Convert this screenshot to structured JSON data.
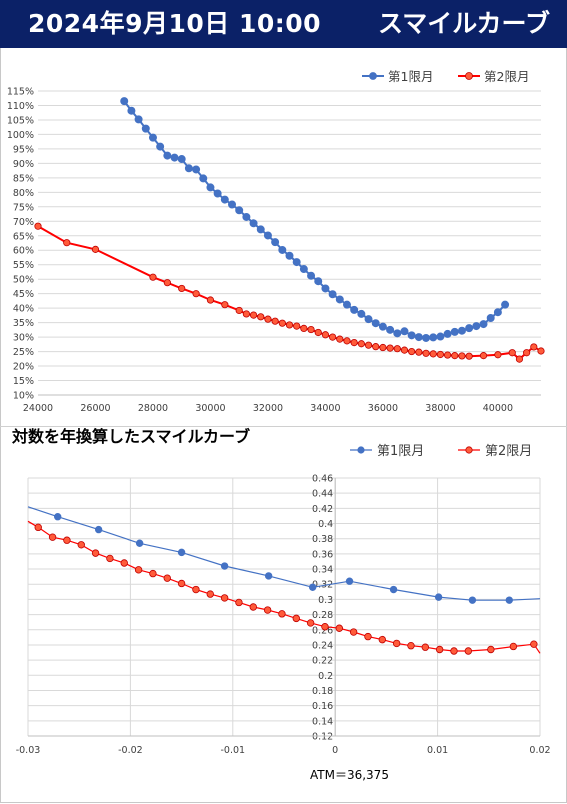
{
  "header": {
    "date": "2024年9月10日 10:00",
    "title": "スマイルカーブ"
  },
  "colors": {
    "header_bg": "#0b2167",
    "series1": "#4472c4",
    "series2": "#ff0000",
    "series2_fill": "#ff5b3a",
    "grid": "#d9d9d9"
  },
  "chart_data": [
    {
      "type": "line",
      "title": "",
      "legend_position": "top-right",
      "grid": true,
      "xlim": [
        24000,
        41500
      ],
      "ylim": [
        10,
        115
      ],
      "x_ticks": [
        "24000",
        "26000",
        "28000",
        "30000",
        "32000",
        "34000",
        "36000",
        "38000",
        "40000"
      ],
      "y_ticks": [
        "10%",
        "15%",
        "20%",
        "25%",
        "30%",
        "35%",
        "40%",
        "45%",
        "50%",
        "55%",
        "60%",
        "65%",
        "70%",
        "75%",
        "80%",
        "85%",
        "90%",
        "95%",
        "100%",
        "105%",
        "110%",
        "115%"
      ],
      "series": [
        {
          "name": "第1限月",
          "x": [
            27000,
            27250,
            27500,
            27750,
            28000,
            28250,
            28500,
            28750,
            29000,
            29250,
            29500,
            29750,
            30000,
            30250,
            30500,
            30750,
            31000,
            31250,
            31500,
            31750,
            32000,
            32250,
            32500,
            32750,
            33000,
            33250,
            33500,
            33750,
            34000,
            34250,
            34500,
            34750,
            35000,
            35250,
            35500,
            35750,
            36000,
            36250,
            36500,
            36750,
            37000,
            37250,
            37500,
            37750,
            38000,
            38250,
            38500,
            38750,
            39000,
            39250,
            39500,
            39750,
            40000,
            40250
          ],
          "values": [
            111.5,
            108.2,
            105.2,
            102.0,
            98.9,
            95.8,
            92.7,
            92.0,
            91.5,
            88.3,
            87.9,
            84.8,
            81.7,
            79.6,
            77.5,
            75.8,
            73.8,
            71.5,
            69.3,
            67.2,
            65.1,
            62.8,
            60.1,
            58.1,
            55.9,
            53.5,
            51.2,
            49.3,
            46.8,
            44.8,
            43.0,
            41.2,
            39.4,
            38.0,
            36.2,
            34.8,
            33.6,
            32.5,
            31.3,
            32.0,
            30.6,
            30.0,
            29.7,
            29.9,
            30.2,
            31.1,
            31.8,
            32.2,
            33.1,
            33.8,
            34.5,
            36.6,
            38.6,
            41.2
          ]
        },
        {
          "name": "第2限月",
          "x": [
            24000,
            25000,
            26000,
            28000,
            28500,
            29000,
            29500,
            30000,
            30500,
            31000,
            31250,
            31500,
            31750,
            32000,
            32250,
            32500,
            32750,
            33000,
            33250,
            33500,
            33750,
            34000,
            34250,
            34500,
            34750,
            35000,
            35250,
            35500,
            35750,
            36000,
            36250,
            36500,
            36750,
            37000,
            37250,
            37500,
            37750,
            38000,
            38250,
            38500,
            38750,
            39000,
            39500,
            40000,
            40500,
            40750,
            41000,
            41250,
            41500
          ],
          "values": [
            68.3,
            62.6,
            60.3,
            50.7,
            48.8,
            46.8,
            45.0,
            42.8,
            41.2,
            39.2,
            38.0,
            37.6,
            37.0,
            36.2,
            35.5,
            34.8,
            34.2,
            33.8,
            33.0,
            32.6,
            31.6,
            30.8,
            30.0,
            29.3,
            28.7,
            28.1,
            27.7,
            27.2,
            26.7,
            26.4,
            26.2,
            26.0,
            25.5,
            25.0,
            24.8,
            24.4,
            24.2,
            24.0,
            23.8,
            23.6,
            23.5,
            23.4,
            23.6,
            23.9,
            24.6,
            22.4,
            24.6,
            26.6,
            25.2
          ]
        }
      ]
    },
    {
      "type": "line",
      "title": "対数を年換算したスマイルカーブ",
      "legend_position": "top-right",
      "grid": true,
      "xlim": [
        -0.03,
        0.02
      ],
      "ylim": [
        0.12,
        0.46
      ],
      "x_ticks": [
        "-0.03",
        "-0.02",
        "-0.01",
        "0",
        "0.01",
        "0.02"
      ],
      "y_ticks": [
        "0.12",
        "0.14",
        "0.16",
        "0.18",
        "0.2",
        "0.22",
        "0.24",
        "0.26",
        "0.28",
        "0.3",
        "0.32",
        "0.34",
        "0.36",
        "0.38",
        "0.4",
        "0.42",
        "0.44",
        "0.46"
      ],
      "series": [
        {
          "name": "第1限月",
          "x": [
            -0.03,
            -0.0271,
            -0.0231,
            -0.0191,
            -0.015,
            -0.0108,
            -0.0065,
            -0.0022,
            0.0014,
            0.0057,
            0.0101,
            0.0134,
            0.017,
            0.02
          ],
          "values": [
            0.422,
            0.409,
            0.392,
            0.374,
            0.362,
            0.344,
            0.331,
            0.316,
            0.324,
            0.313,
            0.303,
            0.299,
            0.299,
            0.301
          ]
        },
        {
          "name": "第2限月",
          "x": [
            -0.03,
            -0.029,
            -0.0276,
            -0.0262,
            -0.0248,
            -0.0234,
            -0.022,
            -0.0206,
            -0.0192,
            -0.0178,
            -0.0164,
            -0.015,
            -0.0136,
            -0.0122,
            -0.0108,
            -0.0094,
            -0.008,
            -0.0066,
            -0.0052,
            -0.0038,
            -0.0024,
            -0.001,
            0.0004,
            0.0018,
            0.0032,
            0.0046,
            0.006,
            0.0074,
            0.0088,
            0.0102,
            0.0116,
            0.013,
            0.0152,
            0.0174,
            0.0194,
            0.02
          ],
          "values": [
            0.403,
            0.395,
            0.382,
            0.378,
            0.372,
            0.361,
            0.354,
            0.348,
            0.339,
            0.334,
            0.328,
            0.321,
            0.313,
            0.307,
            0.302,
            0.296,
            0.29,
            0.286,
            0.281,
            0.275,
            0.269,
            0.264,
            0.262,
            0.257,
            0.251,
            0.247,
            0.242,
            0.239,
            0.237,
            0.234,
            0.232,
            0.232,
            0.234,
            0.238,
            0.241,
            0.229
          ]
        }
      ],
      "note": "ATM＝36,375"
    }
  ]
}
